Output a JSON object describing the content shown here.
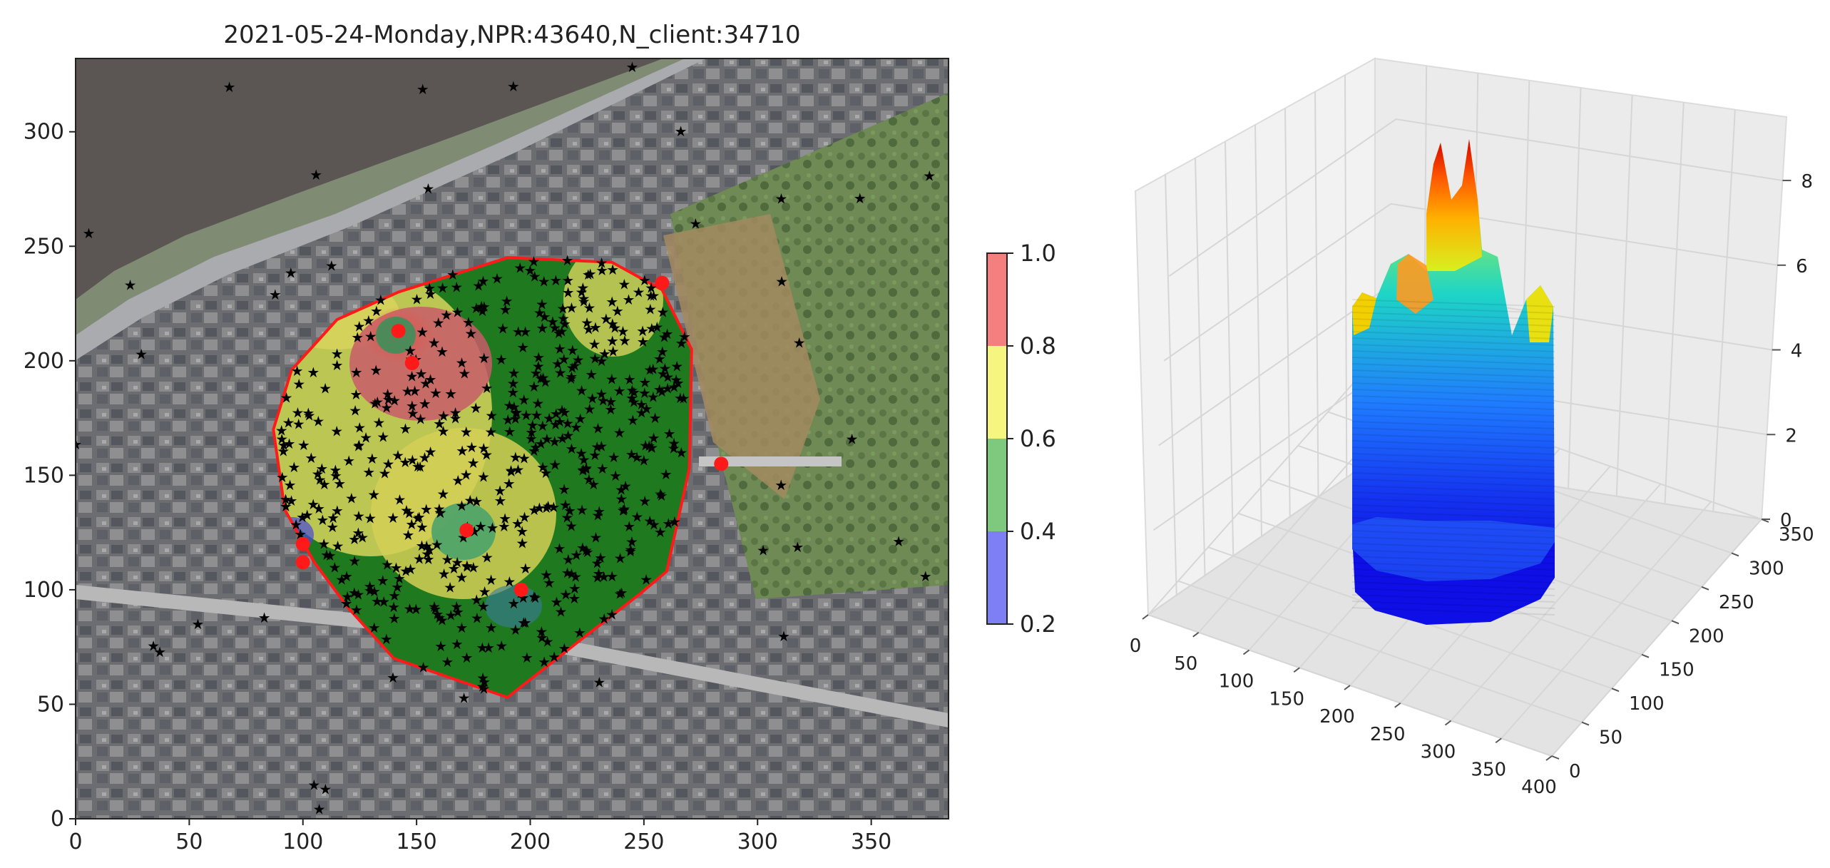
{
  "chart_data": [
    {
      "type": "heatmap",
      "title": "2021-05-24-Monday,NPR:43640,N_client:34710",
      "xlabel": "",
      "ylabel": "",
      "xlim": [
        0,
        384
      ],
      "ylim": [
        0,
        332
      ],
      "x_ticks": [
        0,
        50,
        100,
        150,
        200,
        250,
        300,
        350
      ],
      "y_ticks": [
        0,
        50,
        100,
        150,
        200,
        250,
        300
      ],
      "colorbar": {
        "ticks": [
          0.2,
          0.4,
          0.6,
          0.8,
          1.0
        ],
        "tick_labels": [
          "0.2",
          "0.4",
          "0.6",
          "0.8",
          "1.0"
        ],
        "band_colors": [
          "#7f7ff5",
          "#7fc97f",
          "#f5f57f",
          "#f57f7f"
        ]
      },
      "boundary_polygon": [
        [
          87,
          170
        ],
        [
          95,
          196
        ],
        [
          115,
          218
        ],
        [
          142,
          230
        ],
        [
          190,
          245
        ],
        [
          236,
          243
        ],
        [
          258,
          231
        ],
        [
          271,
          205
        ],
        [
          270,
          153
        ],
        [
          260,
          108
        ],
        [
          248,
          98
        ],
        [
          222,
          78
        ],
        [
          190,
          53
        ],
        [
          140,
          70
        ],
        [
          120,
          92
        ],
        [
          105,
          112
        ],
        [
          92,
          135
        ],
        [
          87,
          170
        ]
      ],
      "red_markers": [
        [
          142,
          213
        ],
        [
          148,
          199
        ],
        [
          172,
          126
        ],
        [
          196,
          100
        ],
        [
          100,
          120
        ],
        [
          100,
          112
        ],
        [
          258,
          234
        ],
        [
          284,
          155
        ]
      ],
      "colors": {
        "boundary": "#ff1a1a",
        "marker_red": "#ff1a1a",
        "marker_black": "#000000"
      }
    },
    {
      "type": "surface3d",
      "x_ticks": [
        0,
        50,
        100,
        150,
        200,
        250,
        300,
        350,
        400
      ],
      "y_ticks": [
        0,
        50,
        100,
        150,
        200,
        250,
        300,
        350
      ],
      "z_ticks": [
        0,
        2,
        4,
        6,
        8
      ],
      "colormap": "jet"
    }
  ]
}
